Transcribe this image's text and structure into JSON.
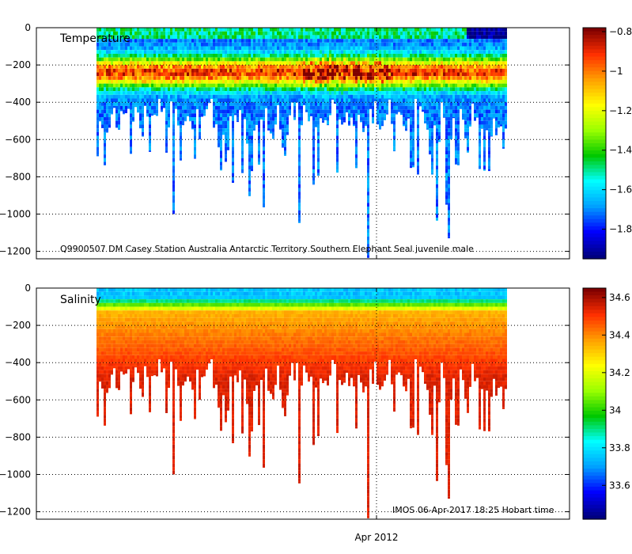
{
  "chart_data": [
    {
      "type": "heatmap",
      "title": "Temperature",
      "annotation": "Q9900507 DM Casey Station Australia Antarctic Territory Southern Elephant Seal juvenile male",
      "yticks": [
        0,
        -200,
        -400,
        -600,
        -800,
        -1000,
        -1200
      ],
      "ylim": [
        -1240,
        0
      ],
      "colorbar_ticks": [
        -0.8,
        -1,
        -1.2,
        -1.4,
        -1.6,
        -1.8
      ],
      "colorbar_range": [
        -1.95,
        -0.78
      ],
      "x_range_columns": [
        0.0,
        1.0
      ],
      "surface_value": -1.75,
      "subsurface_value": -1.35,
      "deep_value": -1.72,
      "grid": true
    },
    {
      "type": "heatmap",
      "title": "Salinity",
      "annotation": "IMOS 06-Apr-2017 18:25 Hobart time",
      "yticks": [
        0,
        -200,
        -400,
        -600,
        -800,
        -1000,
        -1200
      ],
      "ylim": [
        -1240,
        0
      ],
      "colorbar_ticks": [
        34.6,
        34.4,
        34.2,
        34,
        33.8,
        33.6
      ],
      "colorbar_range": [
        33.42,
        34.65
      ],
      "surface_value": 33.75,
      "subsurface_value": 34.35,
      "deep_value": 34.55,
      "grid": true
    }
  ],
  "xaxis": {
    "tick_label": "Apr 2012"
  },
  "colors": {
    "scale": [
      "#00007f",
      "#0000ff",
      "#00a0ff",
      "#00ffff",
      "#00c800",
      "#9aff00",
      "#ffff00",
      "#ffa000",
      "#ff3000",
      "#7f0000"
    ]
  }
}
